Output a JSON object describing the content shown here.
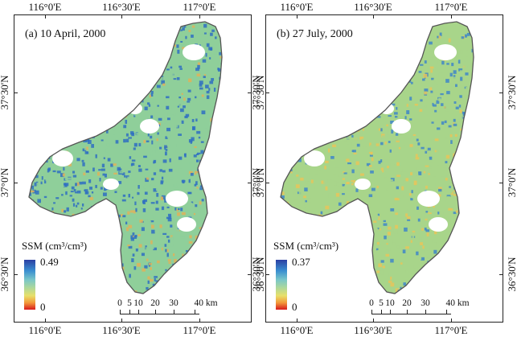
{
  "panels": [
    {
      "id": "a",
      "title": "(a) 10 April, 2000",
      "legend": {
        "title": "SSM (cm³/cm³)",
        "max": "0.49",
        "min": "0"
      },
      "palette": {
        "wet": "#2f6fc2",
        "mid": "#8fcf9a",
        "dry": "#e0b25a"
      }
    },
    {
      "id": "b",
      "title": "(b) 27 July, 2000",
      "legend": {
        "title": "SSM (cm³/cm³)",
        "max": "0.37",
        "min": "0"
      },
      "palette": {
        "wet": "#3f86c8",
        "mid": "#a8d58a",
        "dry": "#e7c45a"
      }
    }
  ],
  "axes": {
    "lon_ticks": [
      "116°0'E",
      "116°30'E",
      "117°0'E"
    ],
    "lat_ticks": [
      "37°30'N",
      "37°0'N",
      "36°30'N"
    ]
  },
  "scalebar": {
    "labels": [
      "0",
      "5",
      "10",
      "20",
      "30",
      "40 km"
    ]
  },
  "colors": {
    "outline": "#555555",
    "no_data": "#ffffff"
  }
}
